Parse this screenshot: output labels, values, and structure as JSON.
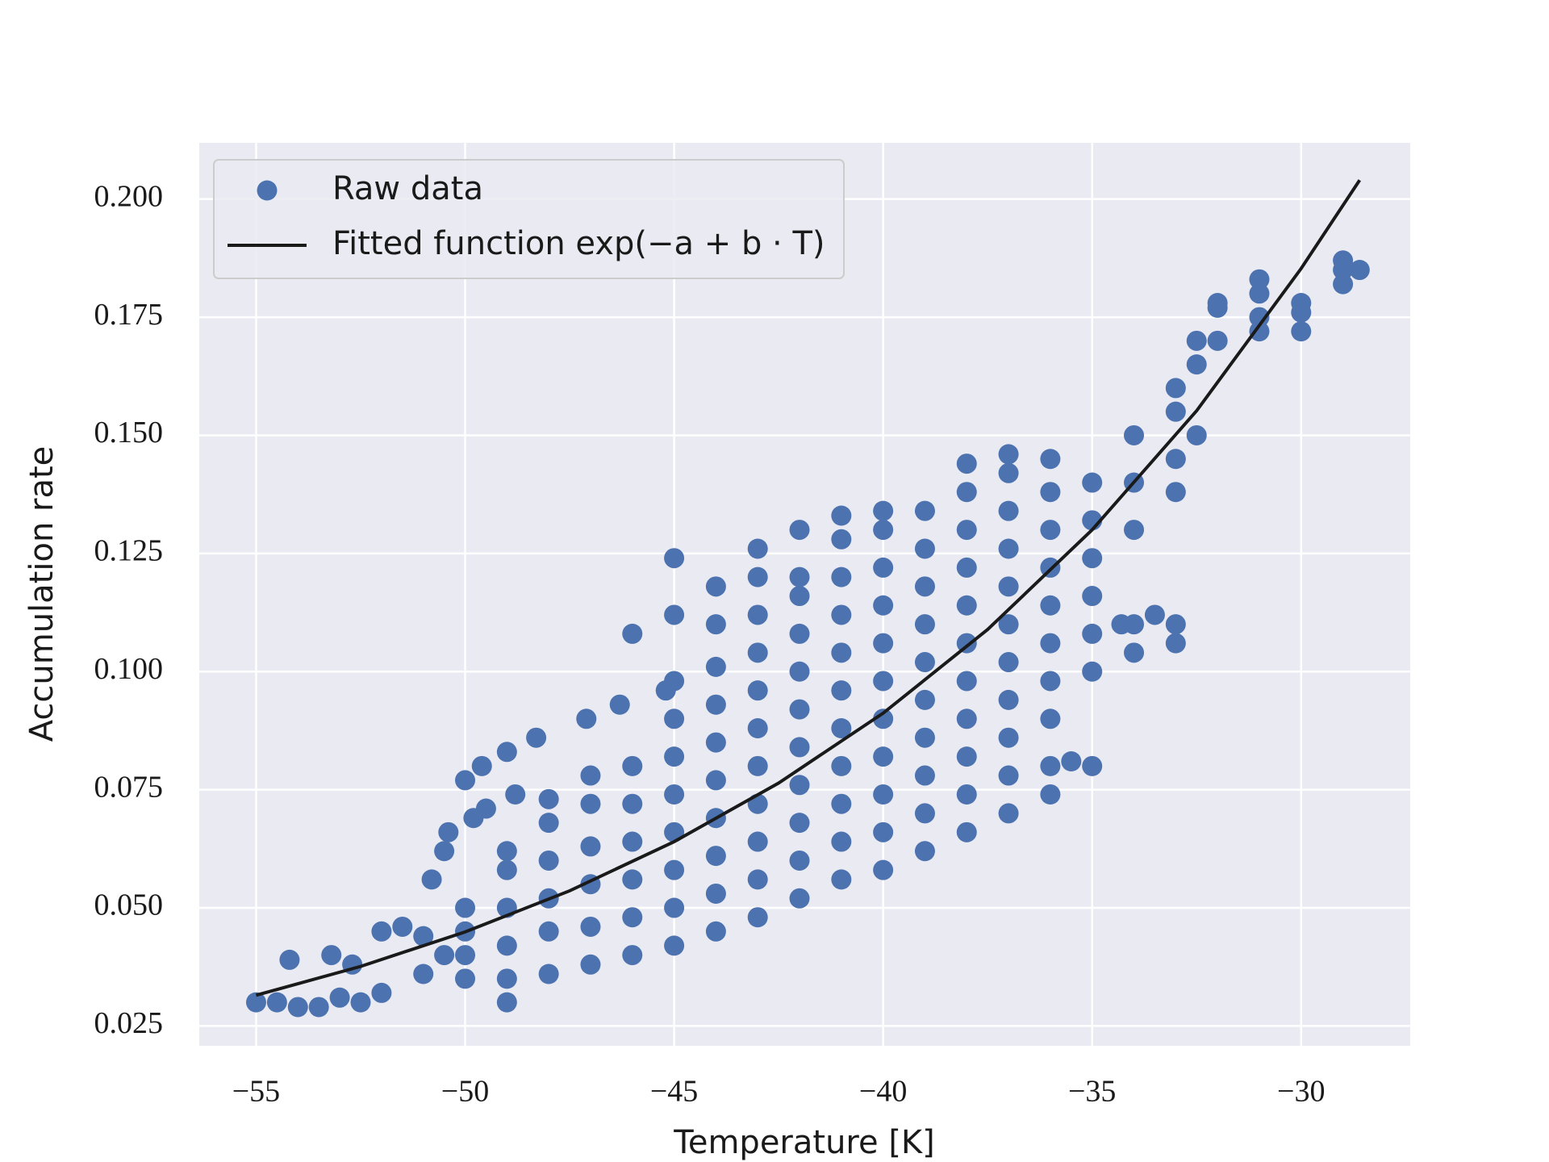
{
  "chart_data": {
    "type": "scatter",
    "xlabel": "Temperature [K]",
    "ylabel": "Accumulation rate",
    "xlim": [
      -56.36,
      -27.39
    ],
    "ylim": [
      0.0208,
      0.2119
    ],
    "xticks": [
      {
        "value": -55,
        "label": "−55"
      },
      {
        "value": -50,
        "label": "−50"
      },
      {
        "value": -45,
        "label": "−45"
      },
      {
        "value": -40,
        "label": "−40"
      },
      {
        "value": -35,
        "label": "−35"
      },
      {
        "value": -30,
        "label": "−30"
      }
    ],
    "yticks": [
      {
        "value": 0.025,
        "label": "0.025"
      },
      {
        "value": 0.05,
        "label": "0.050"
      },
      {
        "value": 0.075,
        "label": "0.075"
      },
      {
        "value": 0.1,
        "label": "0.100"
      },
      {
        "value": 0.125,
        "label": "0.125"
      },
      {
        "value": 0.15,
        "label": "0.150"
      },
      {
        "value": 0.175,
        "label": "0.175"
      },
      {
        "value": 0.2,
        "label": "0.200"
      }
    ],
    "grid": true,
    "legend": "upper left",
    "series": [
      {
        "name": "Raw data",
        "type": "scatter",
        "color": "#4c72b0",
        "x": [
          -55,
          -54.5,
          -54,
          -53.5,
          -53,
          -52.5,
          -52,
          -54.2,
          -53.2,
          -52.7,
          -52,
          -51.5,
          -51,
          -51,
          -50.5,
          -50.8,
          -50.5,
          -50.4,
          -49.8,
          -50,
          -50,
          -50,
          -50,
          -50,
          -49.6,
          -49,
          -49,
          -49,
          -49,
          -49,
          -49,
          -49,
          -48.3,
          -47.1,
          -46.3,
          -45.2,
          -49.5,
          -48.8,
          -48,
          -48,
          -48,
          -48,
          -48,
          -48,
          -47,
          -47,
          -47,
          -47,
          -47,
          -47,
          -46,
          -46,
          -46,
          -46,
          -46,
          -46,
          -46,
          -45,
          -45,
          -45,
          -45,
          -45,
          -45,
          -45,
          -45,
          -45,
          -45,
          -44,
          -44,
          -44,
          -44,
          -44,
          -44,
          -44,
          -44,
          -44,
          -44,
          -43,
          -43,
          -43,
          -43,
          -43,
          -43,
          -43,
          -43,
          -43,
          -43,
          -43,
          -42,
          -42,
          -42,
          -42,
          -42,
          -42,
          -42,
          -42,
          -42,
          -42,
          -42,
          -41,
          -41,
          -41,
          -41,
          -41,
          -41,
          -41,
          -41,
          -41,
          -41,
          -41,
          -40,
          -40,
          -40,
          -40,
          -40,
          -40,
          -40,
          -40,
          -40,
          -40,
          -40,
          -39,
          -39,
          -39,
          -39,
          -39,
          -39,
          -39,
          -39,
          -39,
          -39,
          -38,
          -38,
          -38,
          -38,
          -38,
          -38,
          -38,
          -38,
          -38,
          -38,
          -38,
          -37,
          -37,
          -37,
          -37,
          -37,
          -37,
          -37,
          -37,
          -37,
          -37,
          -37,
          -36,
          -36,
          -36,
          -36,
          -36,
          -36,
          -36,
          -36,
          -36,
          -36,
          -35,
          -35,
          -35,
          -35,
          -35,
          -35,
          -35,
          -35.5,
          -34,
          -34,
          -34,
          -34,
          -34,
          -34.3,
          -33,
          -33,
          -33,
          -33,
          -33,
          -33,
          -33.5,
          -32.5,
          -32.5,
          -32.5,
          -32,
          -32,
          -32,
          -31,
          -31,
          -31,
          -31,
          -30,
          -30,
          -30,
          -29,
          -29,
          -29,
          -28.6
        ],
        "y": [
          0.03,
          0.03,
          0.029,
          0.029,
          0.031,
          0.03,
          0.032,
          0.039,
          0.04,
          0.038,
          0.045,
          0.046,
          0.044,
          0.036,
          0.04,
          0.056,
          0.062,
          0.066,
          0.069,
          0.077,
          0.04,
          0.045,
          0.05,
          0.035,
          0.08,
          0.083,
          0.03,
          0.035,
          0.042,
          0.05,
          0.058,
          0.062,
          0.086,
          0.09,
          0.093,
          0.096,
          0.071,
          0.074,
          0.073,
          0.036,
          0.045,
          0.052,
          0.06,
          0.068,
          0.038,
          0.046,
          0.055,
          0.063,
          0.072,
          0.078,
          0.04,
          0.048,
          0.056,
          0.064,
          0.072,
          0.08,
          0.108,
          0.042,
          0.05,
          0.058,
          0.066,
          0.074,
          0.082,
          0.09,
          0.098,
          0.112,
          0.124,
          0.045,
          0.053,
          0.061,
          0.069,
          0.077,
          0.085,
          0.093,
          0.101,
          0.11,
          0.118,
          0.048,
          0.056,
          0.064,
          0.072,
          0.08,
          0.088,
          0.096,
          0.104,
          0.112,
          0.12,
          0.126,
          0.052,
          0.06,
          0.068,
          0.076,
          0.084,
          0.092,
          0.1,
          0.108,
          0.116,
          0.12,
          0.13,
          0.056,
          0.064,
          0.072,
          0.08,
          0.088,
          0.096,
          0.104,
          0.112,
          0.12,
          0.128,
          0.133,
          0.058,
          0.066,
          0.074,
          0.082,
          0.09,
          0.098,
          0.106,
          0.114,
          0.122,
          0.13,
          0.134,
          0.062,
          0.07,
          0.078,
          0.086,
          0.094,
          0.102,
          0.11,
          0.118,
          0.126,
          0.134,
          0.066,
          0.074,
          0.082,
          0.09,
          0.098,
          0.106,
          0.114,
          0.122,
          0.13,
          0.138,
          0.144,
          0.07,
          0.078,
          0.086,
          0.094,
          0.102,
          0.11,
          0.118,
          0.126,
          0.134,
          0.142,
          0.146,
          0.074,
          0.08,
          0.09,
          0.098,
          0.106,
          0.114,
          0.122,
          0.13,
          0.138,
          0.145,
          0.08,
          0.1,
          0.108,
          0.116,
          0.124,
          0.132,
          0.14,
          0.081,
          0.104,
          0.11,
          0.13,
          0.14,
          0.15,
          0.11,
          0.106,
          0.11,
          0.138,
          0.145,
          0.155,
          0.16,
          0.112,
          0.15,
          0.165,
          0.17,
          0.17,
          0.177,
          0.178,
          0.175,
          0.18,
          0.183,
          0.172,
          0.172,
          0.176,
          0.178,
          0.182,
          0.185,
          0.187,
          0.185
        ]
      },
      {
        "name": "Fitted function exp(−a + b · T)",
        "type": "line",
        "color": "#1a1a1a",
        "x": [
          -55,
          -52.5,
          -50,
          -47.5,
          -45,
          -42.5,
          -40,
          -37.5,
          -35,
          -32.5,
          -30,
          -28.6
        ],
        "y": [
          0.0315,
          0.0376,
          0.0449,
          0.0536,
          0.064,
          0.0764,
          0.0912,
          0.1089,
          0.13,
          0.1552,
          0.1853,
          0.204
        ]
      }
    ]
  }
}
